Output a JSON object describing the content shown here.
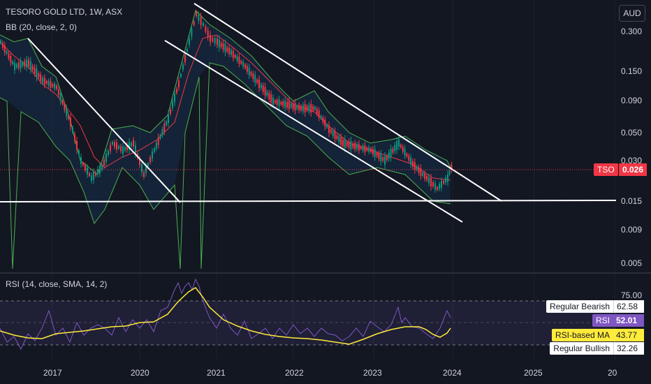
{
  "header": {
    "symbol_line": "TESORO GOLD LTD, 1W, ASX",
    "bb_line": "BB (20, close, 2, 0)",
    "currency_button": "AUD"
  },
  "rsi_panel": {
    "legend": "RSI (14, close, SMA, 14, 2)",
    "labels": [
      {
        "name": "Regular Bearish",
        "value": "62.58",
        "bg": "#ffffff",
        "fg": "#131722"
      },
      {
        "name": "RSI",
        "value": "52.01",
        "bg": "#7e57c2",
        "fg": "#ffffff"
      },
      {
        "name": "RSI-based MA",
        "value": "43.77",
        "bg": "#ffeb3b",
        "fg": "#131722"
      },
      {
        "name": "Regular Bullish",
        "value": "32.26",
        "bg": "#ffffff",
        "fg": "#131722"
      }
    ],
    "levels": [
      "75.00"
    ]
  },
  "price_axis": {
    "ticks": [
      "0.300",
      "0.150",
      "0.090",
      "0.050",
      "0.030",
      "0.015",
      "0.009",
      "0.005"
    ],
    "current_symbol": "TSO",
    "current_price": "0.026"
  },
  "time_axis": {
    "ticks": [
      "2017",
      "2020",
      "2021",
      "2022",
      "2023",
      "2024",
      "2025",
      "20"
    ]
  },
  "colors": {
    "background": "#131722",
    "bb_band": "#4caf50",
    "bb_basis": "#f23645",
    "rsi_line": "#7e57c2",
    "rsi_ma": "#ffeb3b",
    "candle_up": "#089981",
    "candle_down": "#f23645",
    "trendline": "#ffffff"
  }
}
